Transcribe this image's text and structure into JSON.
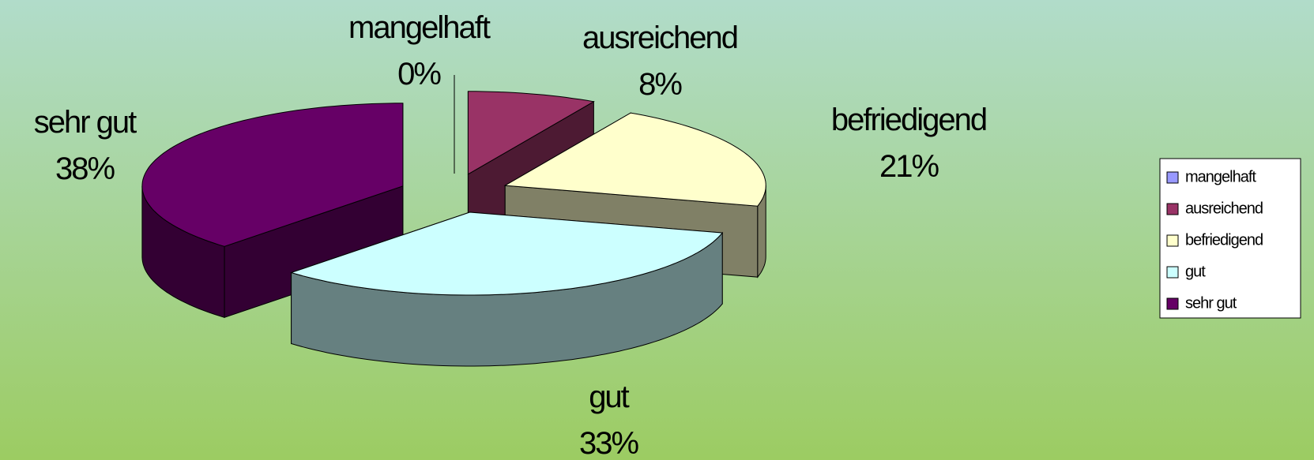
{
  "chart_data": {
    "type": "pie",
    "categories": [
      "mangelhaft",
      "ausreichend",
      "befriedigend",
      "gut",
      "sehr gut"
    ],
    "values": [
      0,
      8,
      21,
      33,
      38
    ],
    "value_labels": [
      "0%",
      "8%",
      "21%",
      "33%",
      "38%"
    ],
    "colors": [
      "#9999ff",
      "#993366",
      "#ffffcc",
      "#ccffff",
      "#660066"
    ],
    "legend": "right"
  }
}
